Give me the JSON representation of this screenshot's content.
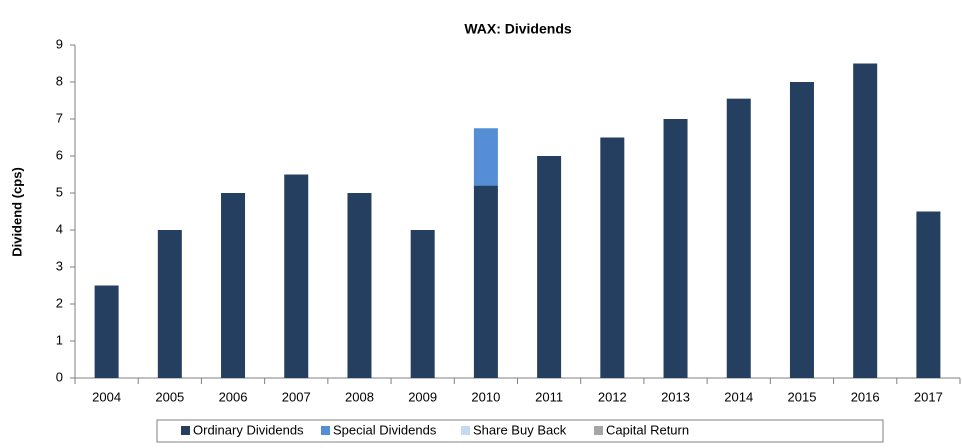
{
  "chart_data": {
    "type": "stacked_bar",
    "title": "WAX: Dividends",
    "y_label": "Dividend (cps)",
    "categories": [
      "2004",
      "2005",
      "2006",
      "2007",
      "2008",
      "2009",
      "2010",
      "2011",
      "2012",
      "2013",
      "2014",
      "2015",
      "2016",
      "2017"
    ],
    "series": [
      {
        "name": "Ordinary Dividends",
        "color": "#243f60",
        "values": [
          2.5,
          4,
          5,
          5.5,
          5,
          4,
          5.2,
          6,
          6.5,
          7,
          7.55,
          8,
          8.5,
          4.5
        ]
      },
      {
        "name": "Special Dividends",
        "color": "#558ed5",
        "values": [
          0,
          0,
          0,
          0,
          0,
          0,
          1.55,
          0,
          0,
          0,
          0,
          0,
          0,
          0
        ]
      },
      {
        "name": "Share Buy Back",
        "color": "#c6d9f1",
        "values": [
          0,
          0,
          0,
          0,
          0,
          0,
          0,
          0,
          0,
          0,
          0,
          0,
          0,
          0
        ]
      },
      {
        "name": "Capital Return",
        "color": "#a6a6a6",
        "values": [
          0,
          0,
          0,
          0,
          0,
          0,
          0,
          0,
          0,
          0,
          0,
          0,
          0,
          0
        ]
      }
    ],
    "ylim": [
      0,
      9
    ],
    "yticks": [
      0,
      1,
      2,
      3,
      4,
      5,
      6,
      7,
      8,
      9
    ],
    "legend": "bottom"
  }
}
